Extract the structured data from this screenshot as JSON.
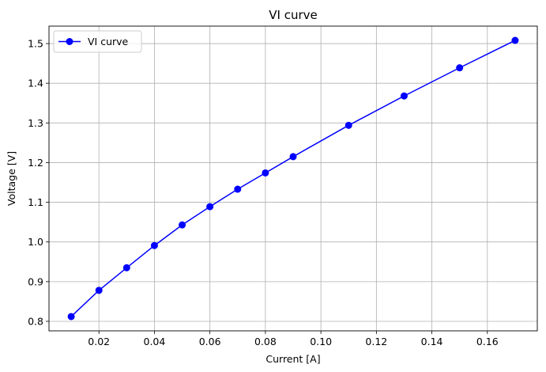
{
  "chart_data": {
    "type": "line",
    "title": "VI curve",
    "xlabel": "Current [A]",
    "ylabel": "Voltage [V]",
    "xlim": [
      0.002,
      0.178
    ],
    "ylim": [
      0.776,
      1.544
    ],
    "xticks": [
      0.02,
      0.04,
      0.06,
      0.08,
      0.1,
      0.12,
      0.14,
      0.16
    ],
    "xtick_labels": [
      "0.02",
      "0.04",
      "0.06",
      "0.08",
      "0.10",
      "0.12",
      "0.14",
      "0.16"
    ],
    "yticks": [
      0.8,
      0.9,
      1.0,
      1.1,
      1.2,
      1.3,
      1.4,
      1.5
    ],
    "ytick_labels": [
      "0.8",
      "0.9",
      "1.0",
      "1.1",
      "1.2",
      "1.3",
      "1.4",
      "1.5"
    ],
    "grid": true,
    "legend_position": "top-left",
    "series": [
      {
        "name": "VI curve",
        "color": "#0000ff",
        "marker": "circle",
        "x": [
          0.01,
          0.02,
          0.03,
          0.04,
          0.05,
          0.06,
          0.07,
          0.08,
          0.09,
          0.11,
          0.13,
          0.15,
          0.17
        ],
        "y": [
          0.812,
          0.878,
          0.935,
          0.991,
          1.043,
          1.089,
          1.133,
          1.174,
          1.215,
          1.294,
          1.368,
          1.439,
          1.508
        ]
      }
    ]
  }
}
